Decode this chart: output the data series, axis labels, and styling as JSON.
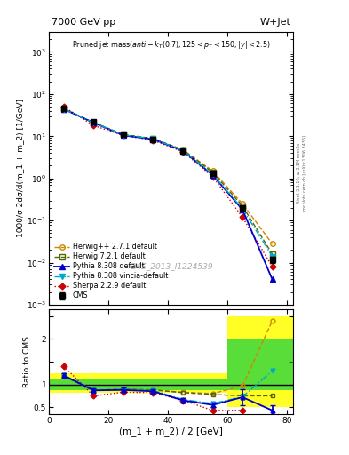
{
  "title_left": "7000 GeV pp",
  "title_right": "W+Jet",
  "watermark": "CMS_2013_I1224539",
  "ylabel_main": "1000/σ 2dσ/d(m_1 + m_2) [1/GeV]",
  "ylabel_ratio": "Ratio to CMS",
  "xlabel": "(m_1 + m_2) / 2 [GeV]",
  "xlim": [
    0,
    82
  ],
  "ylim_main": [
    0.001,
    3000
  ],
  "ylim_ratio": [
    0.35,
    2.65
  ],
  "x": [
    5,
    15,
    25,
    35,
    45,
    55,
    65,
    75
  ],
  "cms_y": [
    45,
    22,
    11,
    8.5,
    4.5,
    1.3,
    0.2,
    0.012
  ],
  "cms_yerr": [
    2.5,
    1.2,
    0.7,
    0.5,
    0.3,
    0.12,
    0.025,
    0.002
  ],
  "herwig1_y": [
    45,
    21,
    11,
    8.8,
    4.8,
    1.5,
    0.25,
    0.028
  ],
  "herwig2_y": [
    44,
    21,
    11,
    8.8,
    4.7,
    1.4,
    0.22,
    0.016
  ],
  "pythia_y": [
    44,
    21,
    10.5,
    8.5,
    4.5,
    1.2,
    0.18,
    0.004
  ],
  "vinc_y": [
    44,
    21,
    10.8,
    8.7,
    4.6,
    1.25,
    0.19,
    0.014
  ],
  "sherpa_y": [
    50,
    18,
    10.5,
    8.0,
    4.3,
    1.1,
    0.12,
    0.008
  ],
  "herwig1_ratio": [
    1.2,
    0.88,
    0.9,
    0.88,
    0.83,
    0.8,
    0.97,
    2.4
  ],
  "herwig2_ratio": [
    1.18,
    0.87,
    0.9,
    0.88,
    0.82,
    0.78,
    0.75,
    0.75
  ],
  "pythia_ratio": [
    1.2,
    0.87,
    0.88,
    0.85,
    0.65,
    0.55,
    0.72,
    0.43
  ],
  "pythia_ratio_err": [
    0.05,
    0.05,
    0.05,
    0.05,
    0.05,
    0.05,
    0.18,
    0.12
  ],
  "vinc_ratio": [
    1.2,
    0.87,
    0.89,
    0.87,
    0.67,
    0.58,
    0.73,
    1.3
  ],
  "sherpa_ratio": [
    1.4,
    0.75,
    0.83,
    0.82,
    0.65,
    0.43,
    0.43,
    null
  ],
  "band_edges": [
    0,
    55,
    60,
    75,
    82
  ],
  "band_yellow": [
    [
      0.82,
      1.25
    ],
    [
      0.82,
      1.25
    ],
    [
      0.5,
      2.5
    ],
    [
      0.5,
      2.5
    ],
    [
      0.5,
      2.5
    ]
  ],
  "band_green": [
    [
      0.88,
      1.12
    ],
    [
      0.88,
      1.12
    ],
    [
      0.88,
      2.0
    ],
    [
      0.88,
      2.0
    ],
    [
      0.88,
      2.0
    ]
  ],
  "colors": {
    "cms": "black",
    "herwig1": "#cc8800",
    "herwig2": "#556600",
    "pythia": "#0000cc",
    "vinc": "#00aacc",
    "sherpa": "#cc0000"
  },
  "right_axis_label": "mcplots.cern.ch [arXiv:1306.3436]",
  "rivet_label": "Rivet 3.1.10, ≥ 3.1M events"
}
